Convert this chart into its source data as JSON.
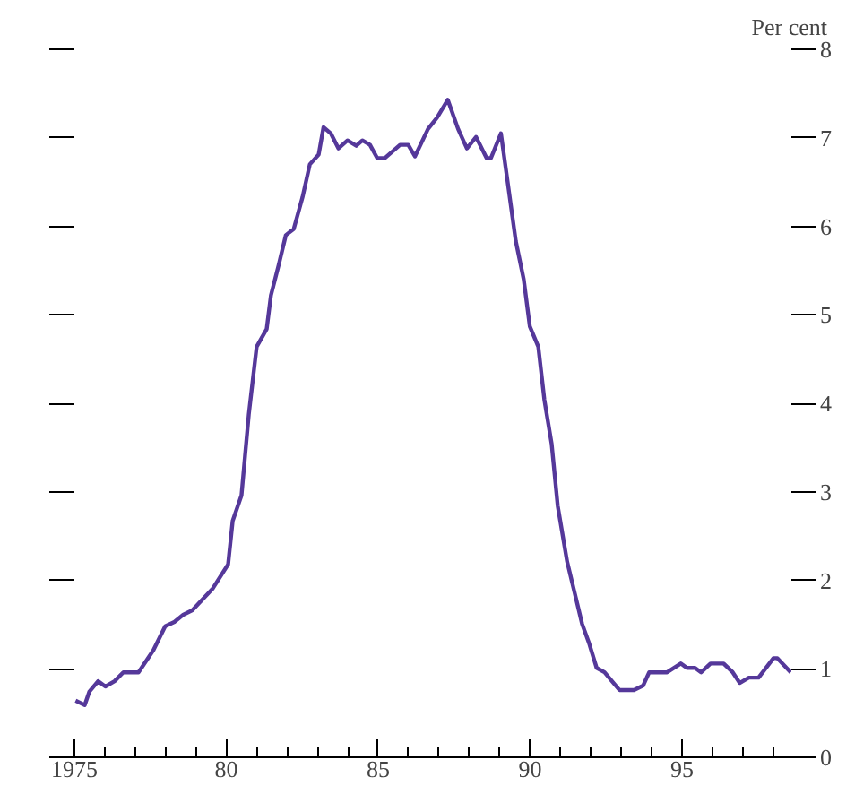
{
  "chart_data": {
    "type": "line",
    "ylabel": "Per cent",
    "x": [
      1975.04,
      1975.34,
      1975.49,
      1975.78,
      1976.02,
      1976.32,
      1976.61,
      1977.11,
      1977.6,
      1977.99,
      1978.29,
      1978.58,
      1978.88,
      1979.56,
      1980.06,
      1980.21,
      1980.5,
      1980.74,
      1981.0,
      1981.33,
      1981.47,
      1981.73,
      1981.96,
      1982.22,
      1982.51,
      1982.75,
      1983.04,
      1983.2,
      1983.44,
      1983.69,
      1983.99,
      1984.28,
      1984.48,
      1984.73,
      1984.97,
      1985.22,
      1985.72,
      1985.99,
      1986.21,
      1986.64,
      1986.94,
      1987.29,
      1987.63,
      1987.92,
      1988.22,
      1988.57,
      1988.71,
      1989.04,
      1989.53,
      1989.79,
      1989.99,
      1990.27,
      1990.47,
      1990.71,
      1990.91,
      1991.22,
      1991.5,
      1991.71,
      1991.95,
      1992.19,
      1992.45,
      1992.94,
      1993.42,
      1993.72,
      1993.92,
      1994.51,
      1994.96,
      1995.16,
      1995.43,
      1995.63,
      1995.94,
      1996.37,
      1996.67,
      1996.9,
      1997.2,
      1997.52,
      1998.01,
      1998.14,
      1998.58
    ],
    "series": [
      {
        "color": "#55389a",
        "values": [
          0.64,
          0.59,
          0.74,
          0.86,
          0.8,
          0.86,
          0.96,
          0.96,
          1.21,
          1.48,
          1.53,
          1.61,
          1.66,
          1.91,
          2.18,
          2.67,
          2.96,
          3.87,
          4.64,
          4.84,
          5.22,
          5.57,
          5.9,
          5.97,
          6.33,
          6.7,
          6.81,
          7.12,
          7.05,
          6.88,
          6.97,
          6.91,
          6.97,
          6.92,
          6.77,
          6.77,
          6.92,
          6.92,
          6.79,
          7.1,
          7.23,
          7.43,
          7.1,
          6.88,
          7.01,
          6.77,
          6.77,
          7.05,
          5.83,
          5.4,
          4.87,
          4.64,
          4.04,
          3.54,
          2.84,
          2.21,
          1.81,
          1.51,
          1.28,
          1.01,
          0.96,
          0.76,
          0.76,
          0.81,
          0.96,
          0.96,
          1.06,
          1.01,
          1.01,
          0.96,
          1.06,
          1.06,
          0.96,
          0.84,
          0.9,
          0.9,
          1.12,
          1.12,
          0.96
        ]
      }
    ],
    "xlim": [
      1975,
      1998.6
    ],
    "xticks": [
      {
        "value": 1975,
        "label": "1975"
      },
      {
        "value": 1976,
        "label": null
      },
      {
        "value": 1977,
        "label": null
      },
      {
        "value": 1978,
        "label": null
      },
      {
        "value": 1979,
        "label": null
      },
      {
        "value": 1980,
        "label": "80"
      },
      {
        "value": 1981,
        "label": null
      },
      {
        "value": 1982,
        "label": null
      },
      {
        "value": 1983,
        "label": null
      },
      {
        "value": 1984,
        "label": null
      },
      {
        "value": 1985,
        "label": "85"
      },
      {
        "value": 1986,
        "label": null
      },
      {
        "value": 1987,
        "label": null
      },
      {
        "value": 1988,
        "label": null
      },
      {
        "value": 1989,
        "label": null
      },
      {
        "value": 1990,
        "label": "90"
      },
      {
        "value": 1991,
        "label": null
      },
      {
        "value": 1992,
        "label": null
      },
      {
        "value": 1993,
        "label": null
      },
      {
        "value": 1994,
        "label": null
      },
      {
        "value": 1995,
        "label": "95"
      },
      {
        "value": 1996,
        "label": null
      },
      {
        "value": 1997,
        "label": null
      },
      {
        "value": 1998,
        "label": null
      }
    ],
    "ylim": [
      0,
      8
    ],
    "yticks": [
      0,
      1,
      2,
      3,
      4,
      5,
      6,
      7,
      8
    ],
    "grid": false,
    "marker": "none",
    "line_style": "solid"
  }
}
